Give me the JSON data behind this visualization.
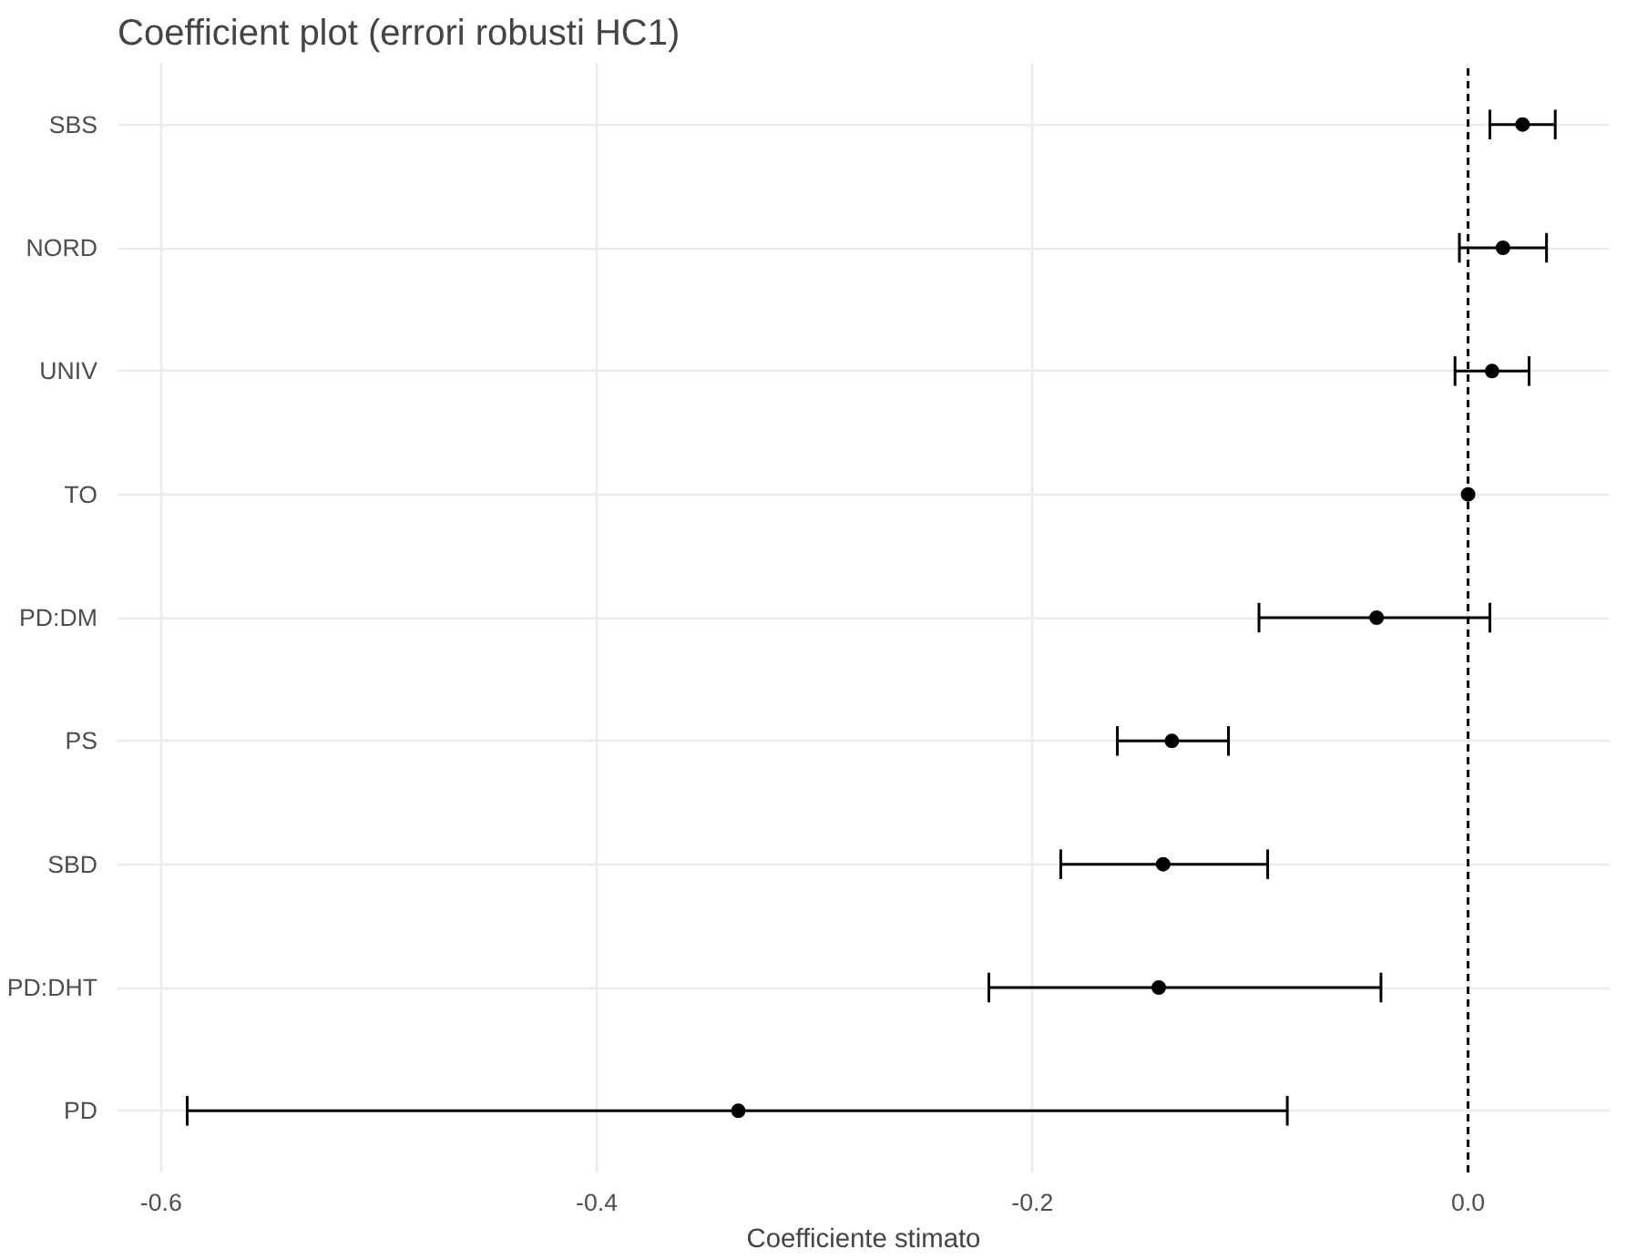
{
  "chart_data": {
    "type": "scatter",
    "orientation": "horizontal",
    "title": "Coefficient plot (errori robusti HC1)",
    "xlabel": "Coefficiente stimato",
    "categories": [
      "SBS",
      "NORD",
      "UNIV",
      "TO",
      "PD:DM",
      "PS",
      "SBD",
      "PD:DHT",
      "PD"
    ],
    "values": [
      0.025,
      0.016,
      0.011,
      0.0,
      -0.042,
      -0.136,
      -0.14,
      -0.142,
      -0.335
    ],
    "errors": [
      [
        0.01,
        0.04
      ],
      [
        -0.004,
        0.036
      ],
      [
        -0.006,
        0.028
      ],
      null,
      [
        -0.096,
        0.01
      ],
      [
        -0.161,
        -0.11
      ],
      [
        -0.187,
        -0.092
      ],
      [
        -0.22,
        -0.04
      ],
      [
        -0.588,
        -0.083
      ]
    ],
    "color": "#000000",
    "marker": "circle",
    "xlim": [
      -0.62,
      0.065
    ],
    "xticks": [
      -0.6,
      -0.4,
      -0.2,
      {
        "value": 0,
        "label": "0.0"
      }
    ],
    "ref_lines": [
      {
        "axis": "x",
        "value": 0.0,
        "line_style": "dashed",
        "color": "#000000"
      }
    ],
    "grid": true
  }
}
